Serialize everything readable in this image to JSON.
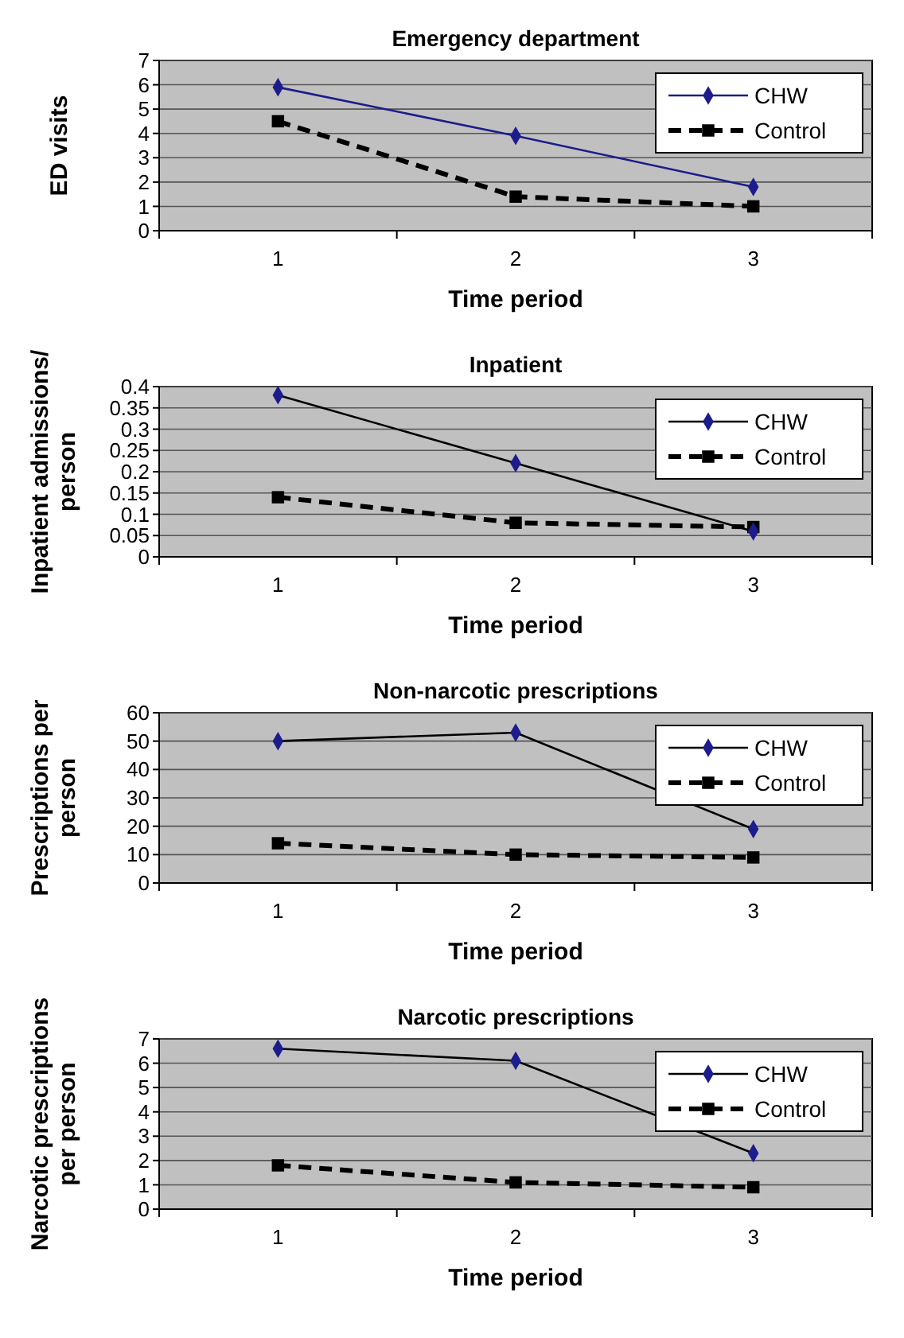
{
  "chart_data": [
    {
      "type": "line",
      "title": "Emergency department",
      "xlabel": "Time period",
      "ylabel": "ED visits",
      "categories": [
        "1",
        "2",
        "3"
      ],
      "ylim": [
        0,
        7
      ],
      "yticks": [
        0,
        1,
        2,
        3,
        4,
        5,
        6,
        7
      ],
      "grid": "y",
      "legend": "top right",
      "series": [
        {
          "name": "CHW",
          "color": "#1c1c8c",
          "marker": "diamond",
          "line_style": "solid",
          "values": [
            5.9,
            3.9,
            1.8
          ]
        },
        {
          "name": "Control",
          "color": "#000000",
          "marker": "square",
          "line_style": "dashed",
          "values": [
            4.5,
            1.4,
            1.0
          ]
        }
      ]
    },
    {
      "type": "line",
      "title": "Inpatient",
      "xlabel": "Time period",
      "ylabel": "Inpatient admissions/ person",
      "categories": [
        "1",
        "2",
        "3"
      ],
      "ylim": [
        0,
        0.4
      ],
      "yticks": [
        0,
        0.05,
        0.1,
        0.15,
        0.2,
        0.25,
        0.3,
        0.35,
        0.4
      ],
      "grid": "y",
      "legend": "top right",
      "series": [
        {
          "name": "CHW",
          "color": "#000000",
          "marker": "diamond",
          "line_style": "solid",
          "values": [
            0.38,
            0.22,
            0.06
          ]
        },
        {
          "name": "Control",
          "color": "#000000",
          "marker": "square",
          "line_style": "dashed",
          "values": [
            0.14,
            0.08,
            0.07
          ]
        }
      ]
    },
    {
      "type": "line",
      "title": "Non-narcotic prescriptions",
      "xlabel": "Time period",
      "ylabel": "Prescriptions per person",
      "categories": [
        "1",
        "2",
        "3"
      ],
      "ylim": [
        0,
        60
      ],
      "yticks": [
        0,
        10,
        20,
        30,
        40,
        50,
        60
      ],
      "grid": "y",
      "legend": "top right",
      "series": [
        {
          "name": "CHW",
          "color": "#000000",
          "marker": "diamond",
          "line_style": "solid",
          "values": [
            50,
            53,
            19
          ]
        },
        {
          "name": "Control",
          "color": "#000000",
          "marker": "square",
          "line_style": "dashed",
          "values": [
            14,
            10,
            9
          ]
        }
      ]
    },
    {
      "type": "line",
      "title": "Narcotic prescriptions",
      "xlabel": "Time period",
      "ylabel": "Narcotic prescriptions per person",
      "categories": [
        "1",
        "2",
        "3"
      ],
      "ylim": [
        0,
        7
      ],
      "yticks": [
        0,
        1,
        2,
        3,
        4,
        5,
        6,
        7
      ],
      "grid": "y",
      "legend": "top right",
      "series": [
        {
          "name": "CHW",
          "color": "#000000",
          "marker": "diamond",
          "line_style": "solid",
          "values": [
            6.6,
            6.1,
            2.3
          ]
        },
        {
          "name": "Control",
          "color": "#000000",
          "marker": "square",
          "line_style": "dashed",
          "values": [
            1.8,
            1.1,
            0.9
          ]
        }
      ]
    }
  ]
}
